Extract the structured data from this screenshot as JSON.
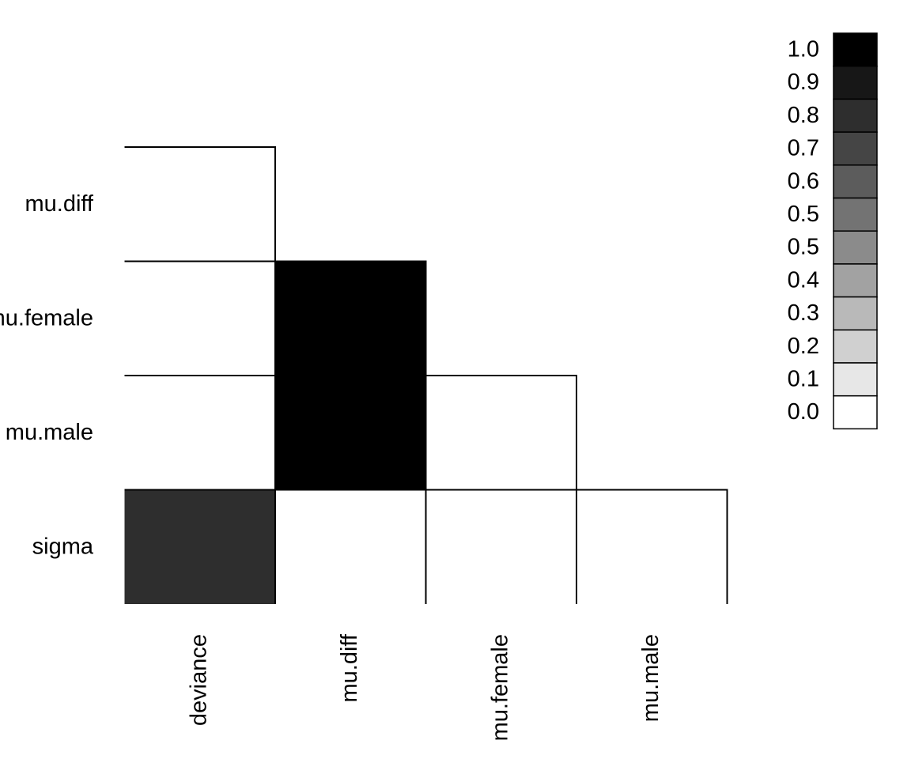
{
  "chart_data": {
    "type": "heatmap",
    "title": "",
    "xlabel": "",
    "ylabel": "",
    "x_categories": [
      "deviance",
      "mu.diff",
      "mu.female",
      "mu.male"
    ],
    "y_categories": [
      "mu.diff",
      "mu.female",
      "mu.male",
      "sigma"
    ],
    "cells": [
      {
        "row": "mu.diff",
        "col": "deviance",
        "value": 0.0
      },
      {
        "row": "mu.female",
        "col": "deviance",
        "value": 0.0
      },
      {
        "row": "mu.female",
        "col": "mu.diff",
        "value": 1.0
      },
      {
        "row": "mu.male",
        "col": "deviance",
        "value": 0.0
      },
      {
        "row": "mu.male",
        "col": "mu.diff",
        "value": 1.0
      },
      {
        "row": "mu.male",
        "col": "mu.female",
        "value": 0.0
      },
      {
        "row": "sigma",
        "col": "deviance",
        "value": 0.8
      },
      {
        "row": "sigma",
        "col": "mu.diff",
        "value": 0.0
      },
      {
        "row": "sigma",
        "col": "mu.female",
        "value": 0.0
      },
      {
        "row": "sigma",
        "col": "mu.male",
        "value": 0.0
      }
    ],
    "legend": {
      "placement": "top-right",
      "labels": [
        "1.0",
        "0.9",
        "0.8",
        "0.7",
        "0.6",
        "0.5",
        "0.5",
        "0.4",
        "0.3",
        "0.2",
        "0.1",
        "0.0"
      ],
      "colors": [
        "#000000",
        "#171717",
        "#2e2e2e",
        "#454545",
        "#5c5c5c",
        "#737373",
        "#8b8b8b",
        "#a2a2a2",
        "#b9b9b9",
        "#d0d0d0",
        "#e7e7e7",
        "#ffffff"
      ]
    },
    "grid": false
  }
}
